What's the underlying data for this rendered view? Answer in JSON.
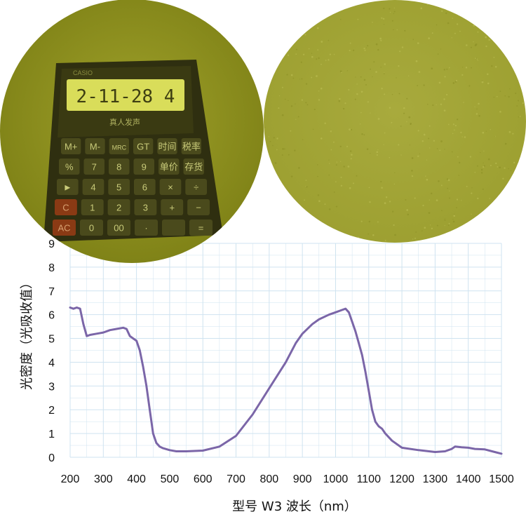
{
  "photos": {
    "calculator": {
      "display_text": "2-11-28 4",
      "brand_text": "CASIO",
      "label_text": "真人发声",
      "keys": [
        [
          "M+",
          "M-",
          "MRC",
          "GT",
          "时间",
          "税率"
        ],
        [
          "%",
          "7",
          "8",
          "9",
          "单价",
          "存货"
        ],
        [
          "►",
          "4",
          "5",
          "6",
          "×",
          "÷"
        ],
        [
          "C",
          "1",
          "2",
          "3",
          "+",
          "−"
        ],
        [
          "AC",
          "0",
          "00",
          "·",
          "",
          "="
        ]
      ]
    },
    "sample_label": ""
  },
  "colors": {
    "tint": "#8a8f1e",
    "sample": "#a0a23a",
    "curve": "#7b66a8",
    "grid": "#cfe3f0"
  },
  "chart_data": {
    "type": "line",
    "xlabel": "型号 W3  波长（nm）",
    "ylabel": "光密度（光吸收值）",
    "xlim": [
      200,
      1500
    ],
    "ylim": [
      0,
      9
    ],
    "xticks": [
      200,
      300,
      400,
      500,
      600,
      700,
      800,
      900,
      1000,
      1100,
      1200,
      1300,
      1400,
      1500
    ],
    "yticks": [
      0,
      1,
      2,
      3,
      4,
      5,
      6,
      7,
      8,
      9
    ],
    "grid": true,
    "series": [
      {
        "x": [
          200,
          210,
          220,
          230,
          240,
          250,
          260,
          280,
          300,
          320,
          340,
          360,
          370,
          380,
          390,
          400,
          410,
          420,
          430,
          440,
          450,
          460,
          470,
          480,
          500,
          520,
          550,
          600,
          650,
          700,
          750,
          800,
          850,
          880,
          900,
          930,
          950,
          980,
          1000,
          1020,
          1030,
          1040,
          1050,
          1060,
          1070,
          1080,
          1090,
          1100,
          1110,
          1120,
          1130,
          1140,
          1150,
          1170,
          1200,
          1250,
          1300,
          1330,
          1350,
          1360,
          1380,
          1400,
          1420,
          1450,
          1480,
          1500
        ],
        "y": [
          6.3,
          6.25,
          6.3,
          6.25,
          5.6,
          5.1,
          5.15,
          5.2,
          5.25,
          5.35,
          5.4,
          5.45,
          5.4,
          5.1,
          5.0,
          4.9,
          4.5,
          3.8,
          3.0,
          2.0,
          1.0,
          0.6,
          0.45,
          0.38,
          0.3,
          0.25,
          0.25,
          0.28,
          0.45,
          0.9,
          1.8,
          2.9,
          4.0,
          4.8,
          5.2,
          5.6,
          5.8,
          6.0,
          6.1,
          6.2,
          6.25,
          6.1,
          5.7,
          5.3,
          4.8,
          4.3,
          3.6,
          2.8,
          2.0,
          1.5,
          1.3,
          1.2,
          1.0,
          0.7,
          0.4,
          0.3,
          0.22,
          0.25,
          0.35,
          0.45,
          0.42,
          0.4,
          0.35,
          0.33,
          0.22,
          0.15
        ]
      }
    ]
  }
}
